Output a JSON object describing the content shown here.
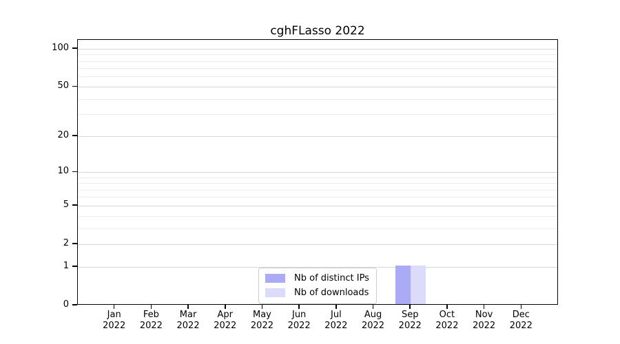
{
  "chart_data": {
    "type": "bar",
    "title": "cghFLasso 2022",
    "categories": [
      "Jan",
      "Feb",
      "Mar",
      "Apr",
      "May",
      "Jun",
      "Jul",
      "Aug",
      "Sep",
      "Oct",
      "Nov",
      "Dec"
    ],
    "x_tick_year": "2022",
    "series": [
      {
        "name": "Nb of distinct IPs",
        "color": "#ababf5",
        "values": [
          0,
          0,
          0,
          0,
          0,
          0,
          0,
          0,
          1,
          0,
          0,
          0
        ]
      },
      {
        "name": "Nb of downloads",
        "color": "#dcdcfa",
        "values": [
          0,
          0,
          0,
          0,
          0,
          0,
          0,
          0,
          1,
          0,
          0,
          0
        ]
      }
    ],
    "y_axis": {
      "scale": "log10(1+y)",
      "ticks": [
        0,
        1,
        2,
        5,
        10,
        20,
        50,
        100
      ],
      "minor_ticks": [
        3,
        4,
        6,
        7,
        8,
        9,
        30,
        40,
        60,
        70,
        80,
        90
      ],
      "range": [
        0,
        118
      ]
    },
    "legend": {
      "position": "lower center",
      "entries": [
        "Nb of distinct IPs",
        "Nb of downloads"
      ]
    },
    "grid": {
      "horizontal": true,
      "major_color": "#d6d6d6",
      "minor_color": "#ededed"
    }
  }
}
